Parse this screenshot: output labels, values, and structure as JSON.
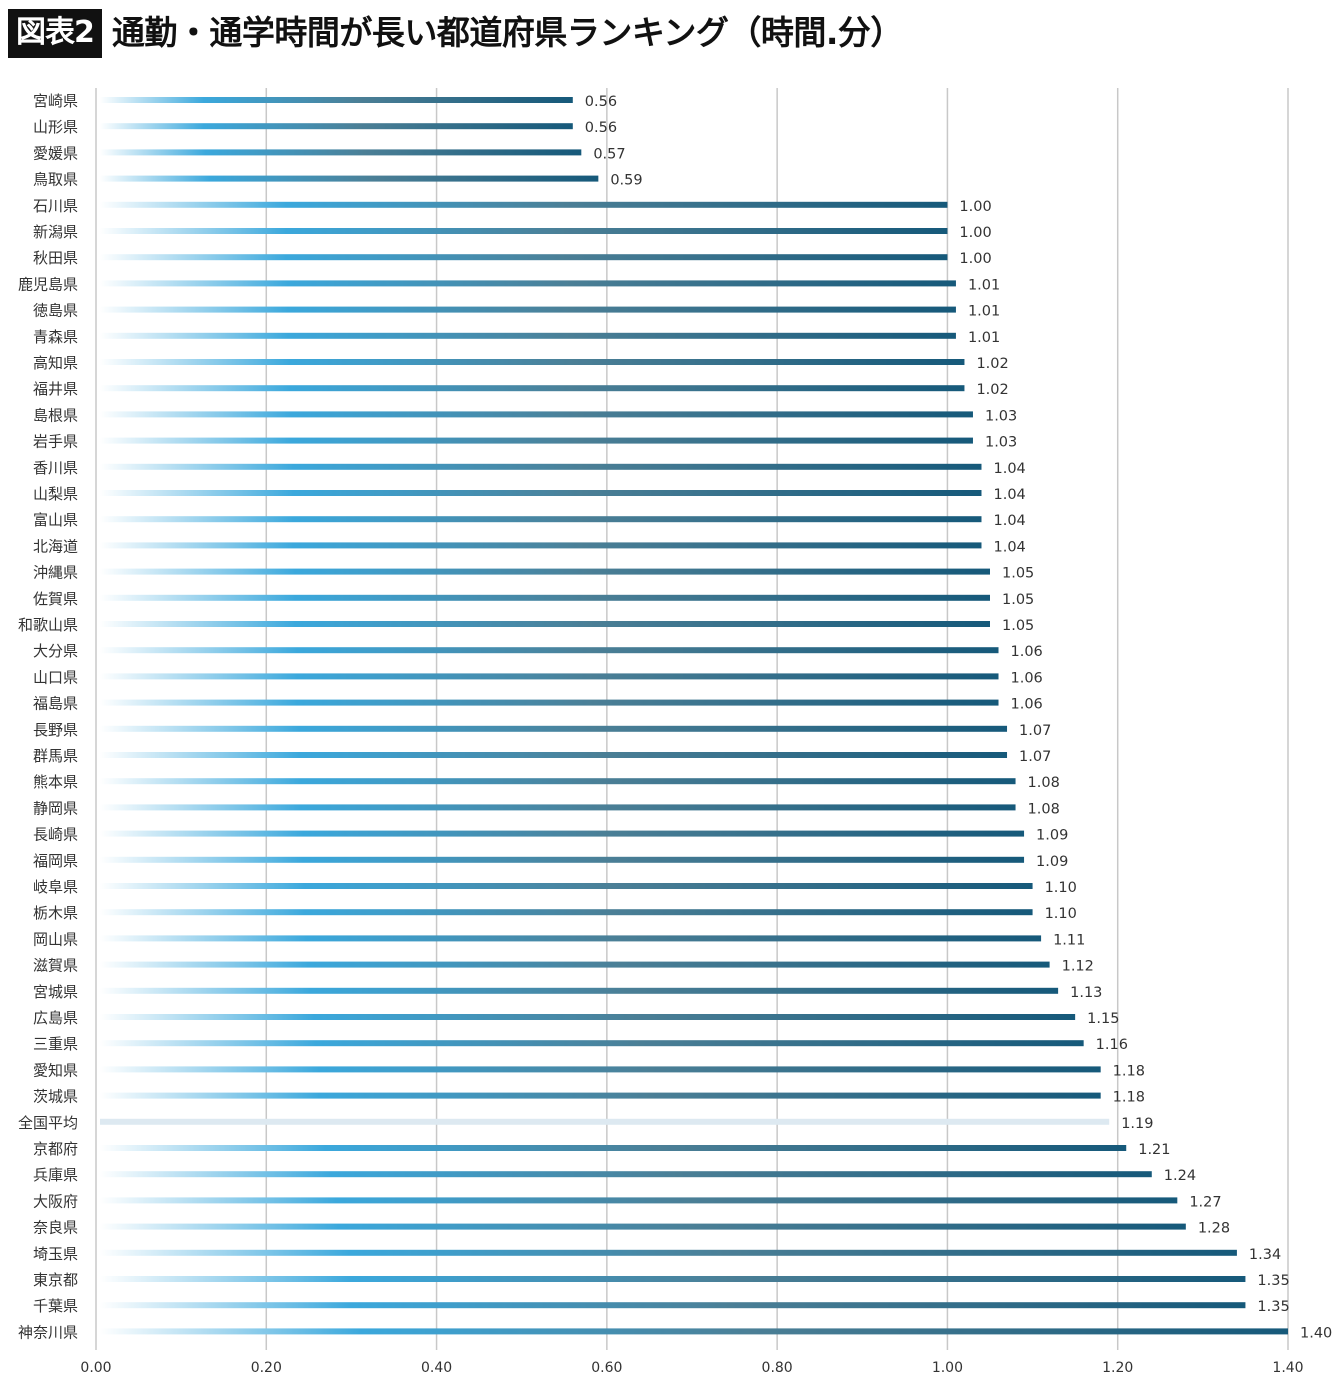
{
  "header": {
    "badge": "図表2",
    "title": "通勤・通学時間が長い都道府県ランキング（時間.分）"
  },
  "colors": {
    "bar_start": "#ffffff",
    "bar_light": "#3ba8dc",
    "bar_mid": "#4b7f96",
    "bar_end": "#16597a",
    "average_bar": "#dde9f1",
    "grid": "#c8c8c8",
    "text": "#333333"
  },
  "chart_data": {
    "type": "bar",
    "orientation": "horizontal",
    "title": "通勤・通学時間が長い都道府県ランキング（時間.分）",
    "xlim": [
      0,
      1.4
    ],
    "xticks": [
      "0.00",
      "0.20",
      "0.40",
      "0.60",
      "0.80",
      "1.00",
      "1.20",
      "1.40"
    ],
    "grid": true,
    "categories": [
      "宮崎県",
      "山形県",
      "愛媛県",
      "鳥取県",
      "石川県",
      "新潟県",
      "秋田県",
      "鹿児島県",
      "徳島県",
      "青森県",
      "高知県",
      "福井県",
      "島根県",
      "岩手県",
      "香川県",
      "山梨県",
      "富山県",
      "北海道",
      "沖縄県",
      "佐賀県",
      "和歌山県",
      "大分県",
      "山口県",
      "福島県",
      "長野県",
      "群馬県",
      "熊本県",
      "静岡県",
      "長崎県",
      "福岡県",
      "岐阜県",
      "栃木県",
      "岡山県",
      "滋賀県",
      "宮城県",
      "広島県",
      "三重県",
      "愛知県",
      "茨城県",
      "全国平均",
      "京都府",
      "兵庫県",
      "大阪府",
      "奈良県",
      "埼玉県",
      "東京都",
      "千葉県",
      "神奈川県"
    ],
    "values": [
      0.56,
      0.56,
      0.57,
      0.59,
      1.0,
      1.0,
      1.0,
      1.01,
      1.01,
      1.01,
      1.02,
      1.02,
      1.03,
      1.03,
      1.04,
      1.04,
      1.04,
      1.04,
      1.05,
      1.05,
      1.05,
      1.06,
      1.06,
      1.06,
      1.07,
      1.07,
      1.08,
      1.08,
      1.09,
      1.09,
      1.1,
      1.1,
      1.11,
      1.12,
      1.13,
      1.15,
      1.16,
      1.18,
      1.18,
      1.19,
      1.21,
      1.24,
      1.27,
      1.28,
      1.34,
      1.35,
      1.35,
      1.4
    ],
    "labels": [
      "0.56",
      "0.56",
      "0.57",
      "0.59",
      "1.00",
      "1.00",
      "1.00",
      "1.01",
      "1.01",
      "1.01",
      "1.02",
      "1.02",
      "1.03",
      "1.03",
      "1.04",
      "1.04",
      "1.04",
      "1.04",
      "1.05",
      "1.05",
      "1.05",
      "1.06",
      "1.06",
      "1.06",
      "1.07",
      "1.07",
      "1.08",
      "1.08",
      "1.09",
      "1.09",
      "1.10",
      "1.10",
      "1.11",
      "1.12",
      "1.13",
      "1.15",
      "1.16",
      "1.18",
      "1.18",
      "1.19",
      "1.21",
      "1.24",
      "1.27",
      "1.28",
      "1.34",
      "1.35",
      "1.35",
      "1.40"
    ],
    "highlight_category": "全国平均"
  }
}
